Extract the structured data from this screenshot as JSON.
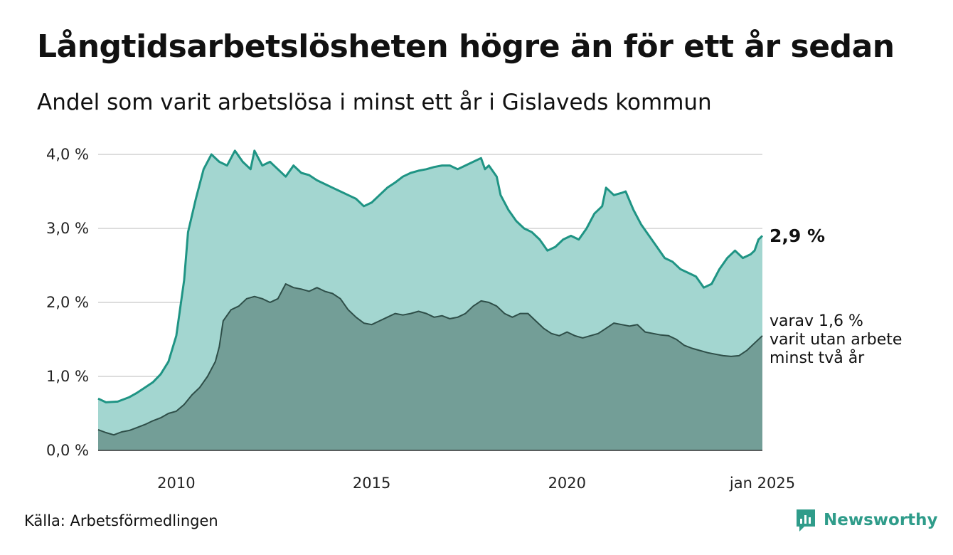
{
  "header": {
    "title": "Långtidsarbetslösheten högre än för ett år sedan",
    "subtitle": "Andel som varit arbetslösa i minst ett år i Gislaveds kommun"
  },
  "footer": {
    "source": "Källa: Arbetsförmedlingen",
    "brand": "Newsworthy"
  },
  "colors": {
    "series1_line": "#1f9484",
    "series1_fill": "#a3d6d0",
    "series2_line": "#2e4e48",
    "series2_fill": "#739e97",
    "gridline": "#dddddd",
    "brand": "#2f9c8a"
  },
  "chart_data": {
    "type": "area",
    "ylim": [
      0,
      4.0
    ],
    "xlim": [
      2008.0,
      2025.0
    ],
    "y_ticks": [
      {
        "value": 0,
        "label": "0,0 %"
      },
      {
        "value": 1,
        "label": "1,0 %"
      },
      {
        "value": 2,
        "label": "2,0 %"
      },
      {
        "value": 3,
        "label": "3,0 %"
      },
      {
        "value": 4,
        "label": "4,0 %"
      }
    ],
    "x_ticks": [
      {
        "value": 2010,
        "label": "2010"
      },
      {
        "value": 2015,
        "label": "2015"
      },
      {
        "value": 2020,
        "label": "2020"
      },
      {
        "value": 2025,
        "label": "jan 2025"
      }
    ],
    "grid": true,
    "end_labels": {
      "main": "2,9 %",
      "sub": [
        "varav 1,6 %",
        "varit utan arbete",
        "minst två år"
      ]
    },
    "series": [
      {
        "key": "minst_ett_ar",
        "points": [
          [
            2008.0,
            0.7
          ],
          [
            2008.2,
            0.65
          ],
          [
            2008.5,
            0.66
          ],
          [
            2008.8,
            0.72
          ],
          [
            2009.0,
            0.78
          ],
          [
            2009.2,
            0.85
          ],
          [
            2009.4,
            0.92
          ],
          [
            2009.6,
            1.03
          ],
          [
            2009.8,
            1.2
          ],
          [
            2010.0,
            1.55
          ],
          [
            2010.2,
            2.3
          ],
          [
            2010.3,
            2.95
          ],
          [
            2010.5,
            3.4
          ],
          [
            2010.7,
            3.8
          ],
          [
            2010.9,
            4.0
          ],
          [
            2011.1,
            3.9
          ],
          [
            2011.3,
            3.85
          ],
          [
            2011.5,
            4.05
          ],
          [
            2011.7,
            3.9
          ],
          [
            2011.9,
            3.8
          ],
          [
            2012.0,
            4.05
          ],
          [
            2012.2,
            3.85
          ],
          [
            2012.4,
            3.9
          ],
          [
            2012.6,
            3.8
          ],
          [
            2012.8,
            3.7
          ],
          [
            2013.0,
            3.85
          ],
          [
            2013.2,
            3.75
          ],
          [
            2013.4,
            3.72
          ],
          [
            2013.6,
            3.65
          ],
          [
            2013.8,
            3.6
          ],
          [
            2014.0,
            3.55
          ],
          [
            2014.2,
            3.5
          ],
          [
            2014.4,
            3.45
          ],
          [
            2014.6,
            3.4
          ],
          [
            2014.8,
            3.3
          ],
          [
            2015.0,
            3.35
          ],
          [
            2015.2,
            3.45
          ],
          [
            2015.4,
            3.55
          ],
          [
            2015.6,
            3.62
          ],
          [
            2015.8,
            3.7
          ],
          [
            2016.0,
            3.75
          ],
          [
            2016.2,
            3.78
          ],
          [
            2016.4,
            3.8
          ],
          [
            2016.6,
            3.83
          ],
          [
            2016.8,
            3.85
          ],
          [
            2017.0,
            3.85
          ],
          [
            2017.2,
            3.8
          ],
          [
            2017.4,
            3.85
          ],
          [
            2017.6,
            3.9
          ],
          [
            2017.8,
            3.95
          ],
          [
            2017.9,
            3.8
          ],
          [
            2018.0,
            3.85
          ],
          [
            2018.2,
            3.7
          ],
          [
            2018.3,
            3.45
          ],
          [
            2018.5,
            3.25
          ],
          [
            2018.7,
            3.1
          ],
          [
            2018.9,
            3.0
          ],
          [
            2019.1,
            2.95
          ],
          [
            2019.3,
            2.85
          ],
          [
            2019.5,
            2.7
          ],
          [
            2019.7,
            2.75
          ],
          [
            2019.9,
            2.85
          ],
          [
            2020.1,
            2.9
          ],
          [
            2020.3,
            2.85
          ],
          [
            2020.5,
            3.0
          ],
          [
            2020.7,
            3.2
          ],
          [
            2020.9,
            3.3
          ],
          [
            2021.0,
            3.55
          ],
          [
            2021.2,
            3.45
          ],
          [
            2021.4,
            3.48
          ],
          [
            2021.5,
            3.5
          ],
          [
            2021.7,
            3.25
          ],
          [
            2021.9,
            3.05
          ],
          [
            2022.1,
            2.9
          ],
          [
            2022.3,
            2.75
          ],
          [
            2022.5,
            2.6
          ],
          [
            2022.7,
            2.55
          ],
          [
            2022.9,
            2.45
          ],
          [
            2023.1,
            2.4
          ],
          [
            2023.3,
            2.35
          ],
          [
            2023.5,
            2.2
          ],
          [
            2023.7,
            2.25
          ],
          [
            2023.9,
            2.45
          ],
          [
            2024.1,
            2.6
          ],
          [
            2024.3,
            2.7
          ],
          [
            2024.5,
            2.6
          ],
          [
            2024.7,
            2.65
          ],
          [
            2024.8,
            2.7
          ],
          [
            2024.9,
            2.85
          ],
          [
            2025.0,
            2.9
          ]
        ]
      },
      {
        "key": "minst_tva_ar",
        "points": [
          [
            2008.0,
            0.28
          ],
          [
            2008.2,
            0.24
          ],
          [
            2008.4,
            0.21
          ],
          [
            2008.6,
            0.25
          ],
          [
            2008.8,
            0.27
          ],
          [
            2009.0,
            0.31
          ],
          [
            2009.2,
            0.35
          ],
          [
            2009.4,
            0.4
          ],
          [
            2009.6,
            0.44
          ],
          [
            2009.8,
            0.5
          ],
          [
            2010.0,
            0.53
          ],
          [
            2010.2,
            0.62
          ],
          [
            2010.4,
            0.75
          ],
          [
            2010.6,
            0.85
          ],
          [
            2010.8,
            1.0
          ],
          [
            2011.0,
            1.2
          ],
          [
            2011.1,
            1.4
          ],
          [
            2011.2,
            1.75
          ],
          [
            2011.4,
            1.9
          ],
          [
            2011.6,
            1.95
          ],
          [
            2011.8,
            2.05
          ],
          [
            2012.0,
            2.08
          ],
          [
            2012.2,
            2.05
          ],
          [
            2012.4,
            2.0
          ],
          [
            2012.6,
            2.05
          ],
          [
            2012.8,
            2.25
          ],
          [
            2013.0,
            2.2
          ],
          [
            2013.2,
            2.18
          ],
          [
            2013.4,
            2.15
          ],
          [
            2013.6,
            2.2
          ],
          [
            2013.8,
            2.15
          ],
          [
            2014.0,
            2.12
          ],
          [
            2014.2,
            2.05
          ],
          [
            2014.4,
            1.9
          ],
          [
            2014.6,
            1.8
          ],
          [
            2014.8,
            1.72
          ],
          [
            2015.0,
            1.7
          ],
          [
            2015.2,
            1.75
          ],
          [
            2015.4,
            1.8
          ],
          [
            2015.6,
            1.85
          ],
          [
            2015.8,
            1.83
          ],
          [
            2016.0,
            1.85
          ],
          [
            2016.2,
            1.88
          ],
          [
            2016.4,
            1.85
          ],
          [
            2016.6,
            1.8
          ],
          [
            2016.8,
            1.82
          ],
          [
            2017.0,
            1.78
          ],
          [
            2017.2,
            1.8
          ],
          [
            2017.4,
            1.85
          ],
          [
            2017.6,
            1.95
          ],
          [
            2017.8,
            2.02
          ],
          [
            2018.0,
            2.0
          ],
          [
            2018.2,
            1.95
          ],
          [
            2018.4,
            1.85
          ],
          [
            2018.6,
            1.8
          ],
          [
            2018.8,
            1.85
          ],
          [
            2019.0,
            1.85
          ],
          [
            2019.2,
            1.75
          ],
          [
            2019.4,
            1.65
          ],
          [
            2019.6,
            1.58
          ],
          [
            2019.8,
            1.55
          ],
          [
            2020.0,
            1.6
          ],
          [
            2020.2,
            1.55
          ],
          [
            2020.4,
            1.52
          ],
          [
            2020.6,
            1.55
          ],
          [
            2020.8,
            1.58
          ],
          [
            2021.0,
            1.65
          ],
          [
            2021.2,
            1.72
          ],
          [
            2021.4,
            1.7
          ],
          [
            2021.6,
            1.68
          ],
          [
            2021.8,
            1.7
          ],
          [
            2022.0,
            1.6
          ],
          [
            2022.2,
            1.58
          ],
          [
            2022.4,
            1.56
          ],
          [
            2022.6,
            1.55
          ],
          [
            2022.8,
            1.5
          ],
          [
            2023.0,
            1.42
          ],
          [
            2023.2,
            1.38
          ],
          [
            2023.4,
            1.35
          ],
          [
            2023.6,
            1.32
          ],
          [
            2023.8,
            1.3
          ],
          [
            2024.0,
            1.28
          ],
          [
            2024.2,
            1.27
          ],
          [
            2024.4,
            1.28
          ],
          [
            2024.6,
            1.35
          ],
          [
            2024.8,
            1.45
          ],
          [
            2025.0,
            1.55
          ]
        ]
      }
    ]
  }
}
